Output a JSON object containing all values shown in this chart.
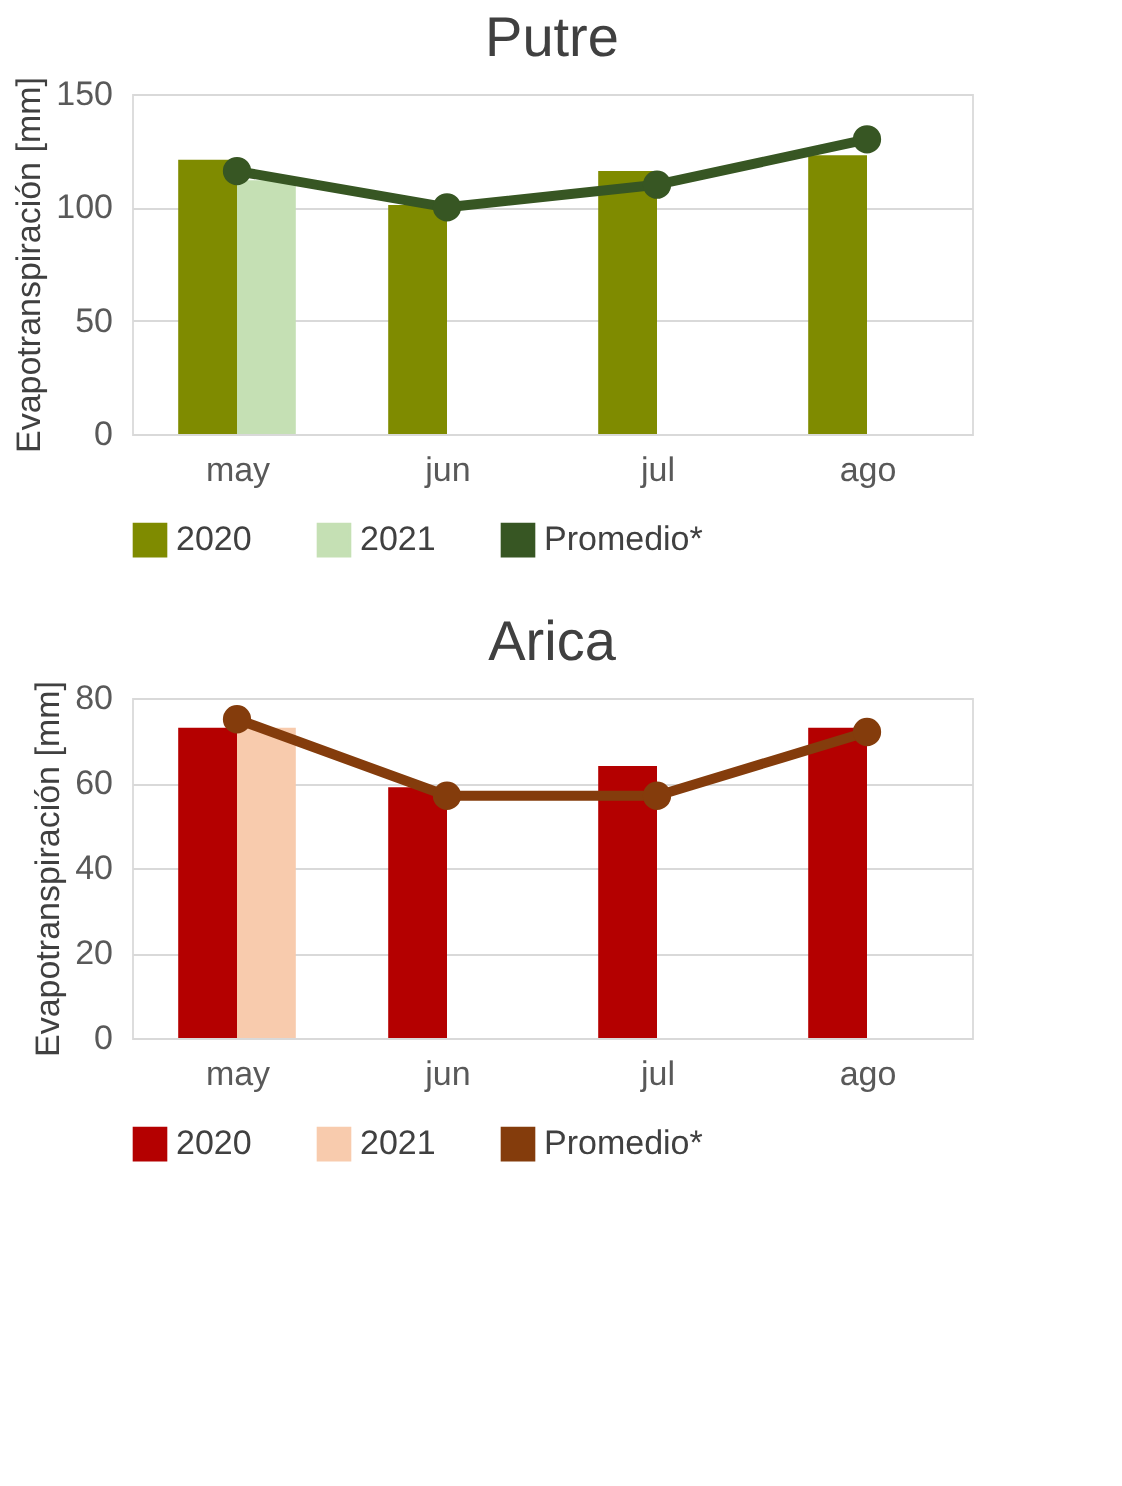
{
  "chart_data": [
    {
      "type": "bar",
      "title": "Putre",
      "ylabel": "Evapotranspiración [mm]",
      "categories": [
        "may",
        "jun",
        "jul",
        "ago"
      ],
      "ylim": [
        0,
        150
      ],
      "yticks": [
        0,
        50,
        100,
        150
      ],
      "grid": "y",
      "legend": "bottom",
      "series": [
        {
          "name": "2020",
          "type": "bar",
          "color": "#7f8b00",
          "values": [
            121,
            101,
            116,
            123
          ]
        },
        {
          "name": "2021",
          "type": "bar",
          "color": "#c5e0b4",
          "values": [
            112,
            null,
            null,
            null
          ]
        },
        {
          "name": "Promedio*",
          "type": "line",
          "color": "#375623",
          "marker": "circle",
          "line_style": "solid",
          "values": [
            116,
            100,
            110,
            130
          ]
        }
      ]
    },
    {
      "type": "bar",
      "title": "Arica",
      "ylabel": "Evapotranspiración [mm]",
      "categories": [
        "may",
        "jun",
        "jul",
        "ago"
      ],
      "ylim": [
        0,
        80
      ],
      "yticks": [
        0,
        20,
        40,
        60,
        80
      ],
      "grid": "y",
      "legend": "bottom",
      "series": [
        {
          "name": "2020",
          "type": "bar",
          "color": "#b40000",
          "values": [
            73,
            59,
            64,
            73
          ]
        },
        {
          "name": "2021",
          "type": "bar",
          "color": "#f8cbad",
          "values": [
            73,
            null,
            null,
            null
          ]
        },
        {
          "name": "Promedio*",
          "type": "line",
          "color": "#843c0c",
          "marker": "circle",
          "line_style": "solid",
          "values": [
            75,
            57,
            57,
            72
          ]
        }
      ]
    }
  ]
}
